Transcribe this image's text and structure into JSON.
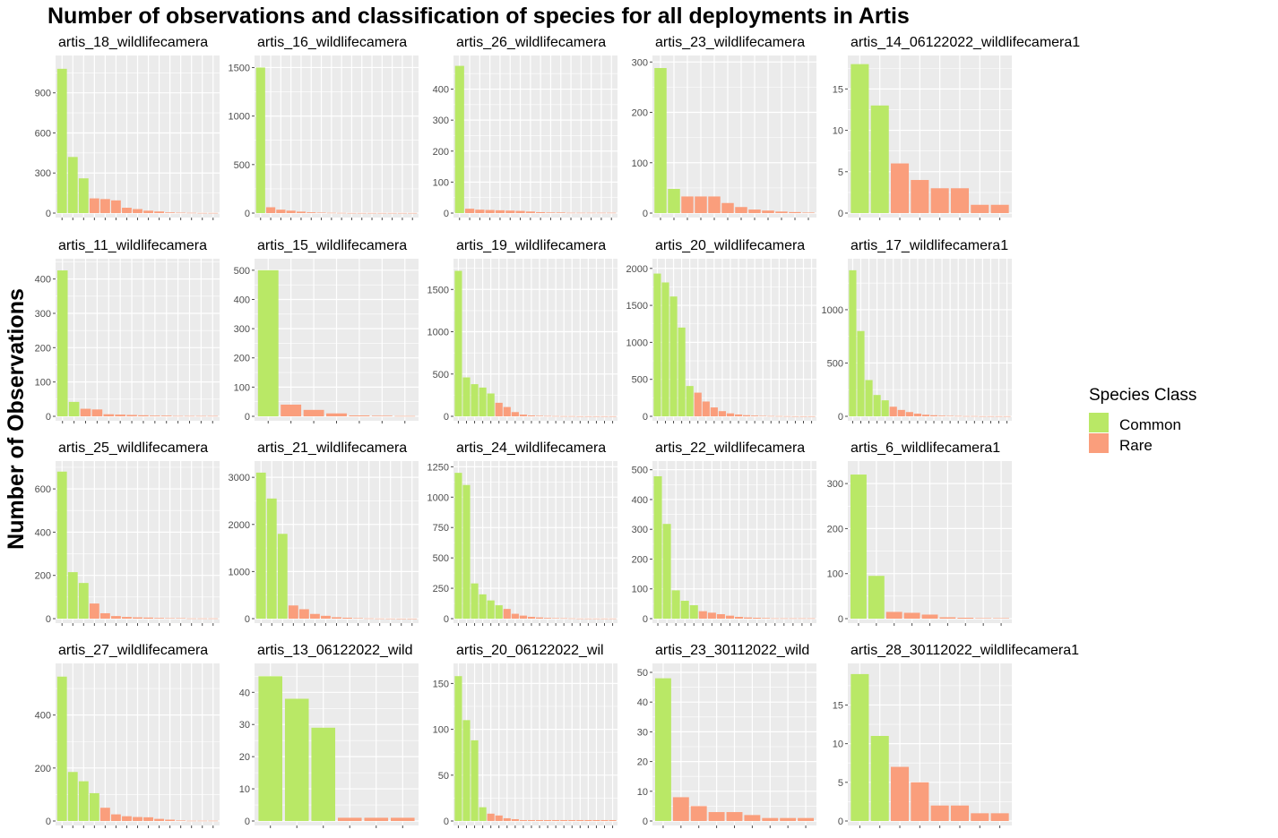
{
  "colors": {
    "common": "#B9E866",
    "rare": "#FA9E7C",
    "panel": "#EBEBEB",
    "grid": "#ffffff",
    "tick": "#4D4D4D",
    "text": "#000000"
  },
  "chart_data": {
    "type": "bar",
    "title": "Number of observations and classification of species for all deployments in Artis",
    "ylabel": "Number of Observations",
    "xlabel": "",
    "legend": {
      "title": "Species Class",
      "position": "right",
      "items": [
        "Common",
        "Rare"
      ]
    },
    "panels": [
      {
        "name": "artis_18_wildlifecamera",
        "yticks": [
          0,
          300,
          600,
          900
        ],
        "ylim": [
          0,
          1146
        ],
        "values": [
          1080,
          420,
          260,
          110,
          105,
          95,
          40,
          30,
          18,
          12,
          5,
          3,
          2,
          1,
          1
        ],
        "classes": [
          "Common",
          "Common",
          "Common",
          "Rare",
          "Rare",
          "Rare",
          "Rare",
          "Rare",
          "Rare",
          "Rare",
          "Rare",
          "Rare",
          "Rare",
          "Rare",
          "Rare"
        ]
      },
      {
        "name": "artis_16_wildlifecamera",
        "yticks": [
          0,
          500,
          1000,
          1500
        ],
        "ylim": [
          0,
          1578
        ],
        "values": [
          1500,
          60,
          35,
          25,
          15,
          8,
          5,
          3,
          2,
          1,
          1,
          1,
          1,
          1,
          1,
          1
        ],
        "classes": [
          "Common",
          "Rare",
          "Rare",
          "Rare",
          "Rare",
          "Rare",
          "Rare",
          "Rare",
          "Rare",
          "Rare",
          "Rare",
          "Rare",
          "Rare",
          "Rare",
          "Rare",
          "Rare"
        ]
      },
      {
        "name": "artis_26_wildlifecamera",
        "yticks": [
          0,
          100,
          200,
          300,
          400
        ],
        "ylim": [
          0,
          494
        ],
        "values": [
          475,
          14,
          11,
          10,
          9,
          8,
          7,
          5,
          3,
          2,
          2,
          1,
          1,
          1,
          1,
          1
        ],
        "classes": [
          "Common",
          "Rare",
          "Rare",
          "Rare",
          "Rare",
          "Rare",
          "Rare",
          "Rare",
          "Rare",
          "Rare",
          "Rare",
          "Rare",
          "Rare",
          "Rare",
          "Rare",
          "Rare"
        ]
      },
      {
        "name": "artis_23_wildlifecamera",
        "yticks": [
          0,
          100,
          200,
          300
        ],
        "ylim": [
          0,
          304
        ],
        "values": [
          288,
          48,
          33,
          33,
          33,
          20,
          12,
          7,
          5,
          3,
          2,
          1
        ],
        "classes": [
          "Common",
          "Common",
          "Rare",
          "Rare",
          "Rare",
          "Rare",
          "Rare",
          "Rare",
          "Rare",
          "Rare",
          "Rare",
          "Rare"
        ]
      },
      {
        "name": "artis_14_06122022_wildlifecamera1",
        "yticks": [
          0,
          5,
          10,
          15
        ],
        "ylim": [
          0,
          18.5
        ],
        "values": [
          18,
          13,
          6,
          4,
          3,
          3,
          1,
          1
        ],
        "classes": [
          "Common",
          "Common",
          "Rare",
          "Rare",
          "Rare",
          "Rare",
          "Rare",
          "Rare"
        ]
      },
      {
        "name": "artis_11_wildlifecamera",
        "yticks": [
          0,
          100,
          200,
          300,
          400
        ],
        "ylim": [
          0,
          446
        ],
        "values": [
          425,
          42,
          22,
          20,
          6,
          5,
          4,
          3,
          2,
          2,
          1,
          1,
          1,
          1
        ],
        "classes": [
          "Common",
          "Common",
          "Rare",
          "Rare",
          "Rare",
          "Rare",
          "Rare",
          "Rare",
          "Rare",
          "Rare",
          "Rare",
          "Rare",
          "Rare",
          "Rare"
        ]
      },
      {
        "name": "artis_15_wildlifecamera",
        "yticks": [
          0,
          100,
          200,
          300,
          400,
          500
        ],
        "ylim": [
          0,
          524
        ],
        "values": [
          500,
          40,
          22,
          10,
          3,
          2,
          1
        ],
        "classes": [
          "Common",
          "Rare",
          "Rare",
          "Rare",
          "Rare",
          "Rare",
          "Rare"
        ]
      },
      {
        "name": "artis_19_wildlifecamera",
        "yticks": [
          0,
          500,
          1000,
          1500
        ],
        "ylim": [
          0,
          1810
        ],
        "values": [
          1720,
          460,
          380,
          340,
          270,
          160,
          110,
          50,
          20,
          10,
          6,
          4,
          3,
          2,
          2,
          1,
          1,
          1,
          1,
          1
        ],
        "classes": [
          "Common",
          "Common",
          "Common",
          "Common",
          "Common",
          "Rare",
          "Rare",
          "Rare",
          "Rare",
          "Rare",
          "Rare",
          "Rare",
          "Rare",
          "Rare",
          "Rare",
          "Rare",
          "Rare",
          "Rare",
          "Rare",
          "Rare"
        ]
      },
      {
        "name": "artis_20_wildlifecamera",
        "yticks": [
          0,
          500,
          1000,
          1500,
          2000
        ],
        "ylim": [
          0,
          2070
        ],
        "values": [
          1930,
          1810,
          1620,
          1200,
          410,
          320,
          200,
          120,
          70,
          40,
          25,
          15,
          10,
          6,
          4,
          3,
          2,
          1,
          1,
          1
        ],
        "classes": [
          "Common",
          "Common",
          "Common",
          "Common",
          "Common",
          "Rare",
          "Rare",
          "Rare",
          "Rare",
          "Rare",
          "Rare",
          "Rare",
          "Rare",
          "Rare",
          "Rare",
          "Rare",
          "Rare",
          "Rare",
          "Rare",
          "Rare"
        ]
      },
      {
        "name": "artis_17_wildlifecamera1",
        "yticks": [
          0,
          500,
          1000
        ],
        "ylim": [
          0,
          1436
        ],
        "values": [
          1370,
          800,
          340,
          200,
          150,
          90,
          60,
          40,
          25,
          15,
          10,
          6,
          4,
          3,
          2,
          2,
          1,
          1,
          1,
          1
        ],
        "classes": [
          "Common",
          "Common",
          "Common",
          "Common",
          "Common",
          "Rare",
          "Rare",
          "Rare",
          "Rare",
          "Rare",
          "Rare",
          "Rare",
          "Rare",
          "Rare",
          "Rare",
          "Rare",
          "Rare",
          "Rare",
          "Rare",
          "Rare"
        ]
      },
      {
        "name": "artis_25_wildlifecamera",
        "yticks": [
          0,
          200,
          400,
          600
        ],
        "ylim": [
          0,
          708
        ],
        "values": [
          680,
          215,
          165,
          70,
          25,
          12,
          8,
          6,
          5,
          3,
          2,
          2,
          1,
          1,
          1
        ],
        "classes": [
          "Common",
          "Common",
          "Common",
          "Rare",
          "Rare",
          "Rare",
          "Rare",
          "Rare",
          "Rare",
          "Rare",
          "Rare",
          "Rare",
          "Rare",
          "Rare",
          "Rare"
        ]
      },
      {
        "name": "artis_21_wildlifecamera",
        "yticks": [
          0,
          1000,
          2000,
          3000
        ],
        "ylim": [
          0,
          3250
        ],
        "values": [
          3100,
          2550,
          1800,
          280,
          200,
          100,
          60,
          30,
          20,
          10,
          5,
          3,
          2,
          1,
          1
        ],
        "classes": [
          "Common",
          "Common",
          "Common",
          "Rare",
          "Rare",
          "Rare",
          "Rare",
          "Rare",
          "Rare",
          "Rare",
          "Rare",
          "Rare",
          "Rare",
          "Rare",
          "Rare"
        ]
      },
      {
        "name": "artis_24_wildlifecamera",
        "yticks": [
          0,
          250,
          500,
          750,
          1000,
          1250
        ],
        "ylim": [
          0,
          1260
        ],
        "values": [
          1200,
          1100,
          290,
          200,
          150,
          110,
          80,
          40,
          25,
          15,
          10,
          6,
          4,
          3,
          2,
          1,
          1,
          1,
          1,
          1
        ],
        "classes": [
          "Common",
          "Common",
          "Common",
          "Common",
          "Common",
          "Common",
          "Rare",
          "Rare",
          "Rare",
          "Rare",
          "Rare",
          "Rare",
          "Rare",
          "Rare",
          "Rare",
          "Rare",
          "Rare",
          "Rare",
          "Rare",
          "Rare"
        ]
      },
      {
        "name": "artis_22_wildlifecamera",
        "yticks": [
          0,
          100,
          200,
          300,
          400,
          500
        ],
        "ylim": [
          0,
          514
        ],
        "values": [
          478,
          318,
          95,
          60,
          45,
          25,
          20,
          15,
          10,
          6,
          4,
          3,
          2,
          1,
          1,
          1,
          1,
          1
        ],
        "classes": [
          "Common",
          "Common",
          "Common",
          "Common",
          "Common",
          "Rare",
          "Rare",
          "Rare",
          "Rare",
          "Rare",
          "Rare",
          "Rare",
          "Rare",
          "Rare",
          "Rare",
          "Rare",
          "Rare",
          "Rare"
        ]
      },
      {
        "name": "artis_6_wildlifecamera1",
        "yticks": [
          0,
          100,
          200,
          300
        ],
        "ylim": [
          0,
          340
        ],
        "values": [
          320,
          95,
          15,
          13,
          9,
          3,
          2,
          1,
          1
        ],
        "classes": [
          "Common",
          "Common",
          "Rare",
          "Rare",
          "Rare",
          "Rare",
          "Rare",
          "Rare",
          "Rare"
        ]
      },
      {
        "name": "artis_27_wildlifecamera",
        "yticks": [
          0,
          200,
          400
        ],
        "ylim": [
          0,
          578
        ],
        "values": [
          545,
          185,
          150,
          105,
          50,
          25,
          18,
          15,
          14,
          8,
          5,
          2,
          1,
          1,
          1
        ],
        "classes": [
          "Common",
          "Common",
          "Common",
          "Common",
          "Rare",
          "Rare",
          "Rare",
          "Rare",
          "Rare",
          "Rare",
          "Rare",
          "Rare",
          "Rare",
          "Rare",
          "Rare"
        ]
      },
      {
        "name": "artis_13_06122022_wild",
        "yticks": [
          0,
          10,
          20,
          30,
          40
        ],
        "ylim": [
          0,
          47.6
        ],
        "values": [
          45,
          38,
          29,
          1,
          1,
          1
        ],
        "classes": [
          "Common",
          "Common",
          "Common",
          "Rare",
          "Rare",
          "Rare"
        ]
      },
      {
        "name": "artis_20_06122022_wil",
        "yticks": [
          0,
          50,
          100,
          150
        ],
        "ylim": [
          0,
          167
        ],
        "values": [
          158,
          110,
          88,
          15,
          8,
          6,
          3,
          2,
          1,
          1,
          1,
          1,
          1,
          1,
          1,
          1,
          1,
          1,
          1,
          1
        ],
        "classes": [
          "Common",
          "Common",
          "Common",
          "Common",
          "Rare",
          "Rare",
          "Rare",
          "Rare",
          "Rare",
          "Rare",
          "Rare",
          "Rare",
          "Rare",
          "Rare",
          "Rare",
          "Rare",
          "Rare",
          "Rare",
          "Rare",
          "Rare"
        ]
      },
      {
        "name": "artis_23_30112022_wild",
        "yticks": [
          0,
          10,
          20,
          30,
          40,
          50
        ],
        "ylim": [
          0,
          51.5
        ],
        "values": [
          48,
          8,
          5,
          3,
          3,
          2,
          1,
          1,
          1
        ],
        "classes": [
          "Common",
          "Rare",
          "Rare",
          "Rare",
          "Rare",
          "Rare",
          "Rare",
          "Rare",
          "Rare"
        ]
      },
      {
        "name": "artis_28_30112022_wildlifecamera1",
        "yticks": [
          0,
          5,
          10,
          15
        ],
        "ylim": [
          0,
          19.8
        ],
        "values": [
          19,
          11,
          7,
          5,
          2,
          2,
          1,
          1
        ],
        "classes": [
          "Common",
          "Common",
          "Rare",
          "Rare",
          "Rare",
          "Rare",
          "Rare",
          "Rare"
        ]
      }
    ]
  }
}
